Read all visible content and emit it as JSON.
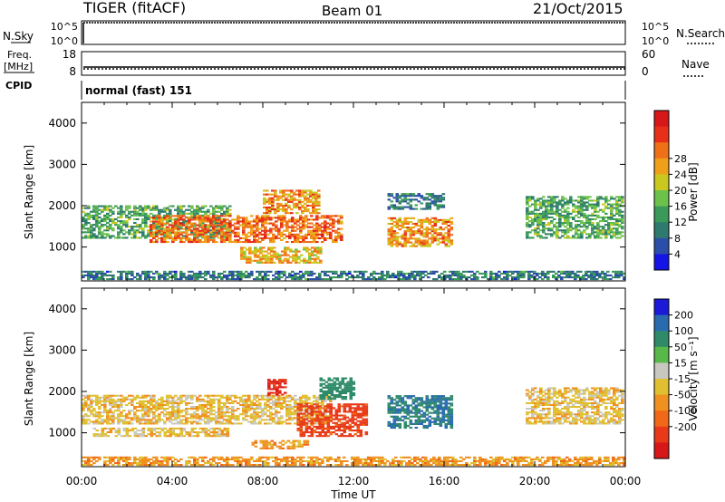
{
  "header": {
    "station": "TIGER (fitACF)",
    "beam": "Beam 01",
    "date": "21/Oct/2015"
  },
  "nsky_panel": {
    "left_label": "N.Sky",
    "right_label": "N.Search",
    "left_ticks": [
      "10^5",
      "10^0"
    ],
    "right_ticks": [
      "10^5",
      "10^0"
    ]
  },
  "freq_panel": {
    "left_label_line1": "Freq.",
    "left_label_line2": "[MHz]",
    "right_label": "Nave",
    "left_ticks": [
      "18",
      "8"
    ],
    "right_ticks": [
      "60",
      "0"
    ],
    "cpid_label": "CPID",
    "cpid_value": "normal (fast) 151"
  },
  "chart_data": [
    {
      "type": "heatmap",
      "title": "",
      "ylabel": "Slant Range [km]",
      "xlabel": "",
      "ylim": [
        180,
        4500
      ],
      "yticks": [
        1000,
        2000,
        3000,
        4000
      ],
      "x_ticks": [
        "00:00",
        "04:00",
        "08:00",
        "12:00",
        "16:00",
        "20:00",
        "00:00"
      ],
      "colorbar": {
        "label": "Power [dB]",
        "ticks": [
          "4",
          "8",
          "12",
          "16",
          "20",
          "24",
          "28"
        ],
        "colors": [
          "#1414e6",
          "#2b4fa8",
          "#2f7a6e",
          "#3a9a5a",
          "#6cc14a",
          "#c8c81e",
          "#f0a018",
          "#f07018",
          "#e83018",
          "#d81818"
        ]
      },
      "regions": [
        {
          "t0": 0.0,
          "t1": 6.5,
          "r0": 1200,
          "r1": 2000,
          "value": 12
        },
        {
          "t0": 3.0,
          "t1": 11.5,
          "r0": 1100,
          "r1": 1750,
          "value": 24
        },
        {
          "t0": 7.0,
          "t1": 10.5,
          "r0": 600,
          "r1": 1000,
          "value": 20
        },
        {
          "t0": 8.0,
          "t1": 10.5,
          "r0": 1800,
          "r1": 2350,
          "value": 22
        },
        {
          "t0": 13.5,
          "t1": 16.3,
          "r0": 1000,
          "r1": 1700,
          "value": 22
        },
        {
          "t0": 13.5,
          "t1": 16.0,
          "r0": 1900,
          "r1": 2300,
          "value": 8
        },
        {
          "t0": 19.6,
          "t1": 23.9,
          "r0": 1200,
          "r1": 2200,
          "value": 12
        },
        {
          "t0": 0.0,
          "t1": 24.0,
          "r0": 200,
          "r1": 400,
          "value": 8
        }
      ]
    },
    {
      "type": "heatmap",
      "title": "",
      "ylabel": "Slant Range [km]",
      "xlabel": "Time UT",
      "ylim": [
        180,
        4500
      ],
      "yticks": [
        1000,
        2000,
        3000,
        4000
      ],
      "x_ticks": [
        "00:00",
        "04:00",
        "08:00",
        "12:00",
        "16:00",
        "20:00",
        "00:00"
      ],
      "colorbar": {
        "label": "Velocity [m s⁻¹]",
        "ticks": [
          "200",
          "100",
          "50",
          "15",
          "-15",
          "-50",
          "-100",
          "-200"
        ],
        "colors": [
          "#1a1ad8",
          "#2a6bb0",
          "#2f8a6a",
          "#58b84a",
          "#c8c8c0",
          "#e0c030",
          "#f09020",
          "#f06818",
          "#e83a18",
          "#d81818"
        ]
      },
      "regions": [
        {
          "t0": 0.0,
          "t1": 11.0,
          "r0": 1200,
          "r1": 1900,
          "value": 0
        },
        {
          "t0": 0.5,
          "t1": 6.5,
          "r0": 900,
          "r1": 1100,
          "value": 0
        },
        {
          "t0": 9.5,
          "t1": 12.5,
          "r0": 900,
          "r1": 1700,
          "value": -120
        },
        {
          "t0": 10.5,
          "t1": 12.0,
          "r0": 1800,
          "r1": 2300,
          "value": 150
        },
        {
          "t0": 8.2,
          "t1": 9.0,
          "r0": 1900,
          "r1": 2300,
          "value": -200
        },
        {
          "t0": 7.5,
          "t1": 10.0,
          "r0": 600,
          "r1": 800,
          "value": -30
        },
        {
          "t0": 13.5,
          "t1": 16.3,
          "r0": 1100,
          "r1": 1900,
          "value": 200
        },
        {
          "t0": 19.6,
          "t1": 23.9,
          "r0": 1200,
          "r1": 2100,
          "value": 0
        },
        {
          "t0": 0.0,
          "t1": 24.0,
          "r0": 200,
          "r1": 400,
          "value": -30
        }
      ]
    }
  ]
}
